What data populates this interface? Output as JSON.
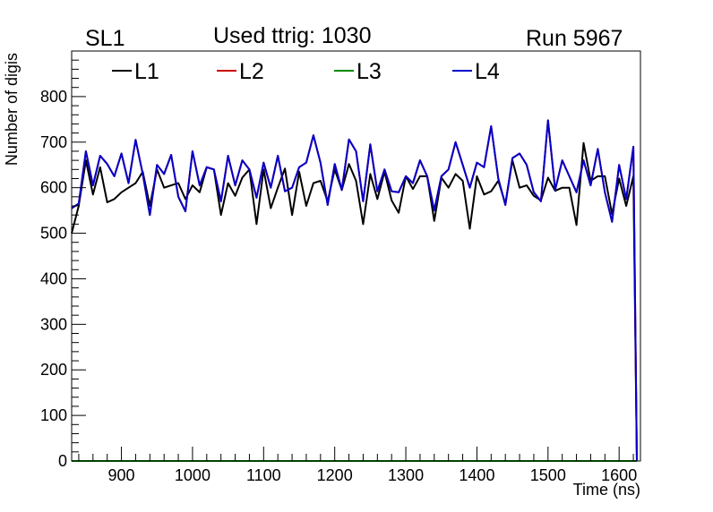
{
  "header": {
    "left": "SL1",
    "center": "Used ttrig: 1030",
    "right": "Run 5967"
  },
  "chart_data": {
    "type": "line",
    "title": "Used ttrig: 1030",
    "xlabel": "Time (ns)",
    "ylabel": "Number of digis",
    "xlim": [
      830,
      1630
    ],
    "ylim": [
      0,
      900
    ],
    "xticks": [
      900,
      1000,
      1100,
      1200,
      1300,
      1400,
      1500,
      1600
    ],
    "yticks": [
      0,
      100,
      200,
      300,
      400,
      500,
      600,
      700,
      800
    ],
    "legend_position": "top",
    "x": [
      830,
      840,
      850,
      860,
      870,
      880,
      890,
      900,
      910,
      920,
      930,
      940,
      950,
      960,
      970,
      980,
      990,
      1000,
      1010,
      1020,
      1030,
      1040,
      1050,
      1060,
      1070,
      1080,
      1090,
      1100,
      1110,
      1120,
      1130,
      1140,
      1150,
      1160,
      1170,
      1180,
      1190,
      1200,
      1210,
      1220,
      1230,
      1240,
      1250,
      1260,
      1270,
      1280,
      1290,
      1300,
      1310,
      1320,
      1330,
      1340,
      1350,
      1360,
      1370,
      1380,
      1390,
      1400,
      1410,
      1420,
      1430,
      1440,
      1450,
      1460,
      1470,
      1480,
      1490,
      1500,
      1510,
      1520,
      1530,
      1540,
      1550,
      1560,
      1570,
      1580,
      1590,
      1600,
      1610,
      1620,
      1625
    ],
    "series": [
      {
        "name": "L1",
        "color": "#000000",
        "values": [
          500,
          560,
          660,
          585,
          645,
          568,
          575,
          590,
          600,
          610,
          635,
          560,
          640,
          600,
          605,
          610,
          575,
          605,
          590,
          645,
          640,
          540,
          610,
          582,
          622,
          640,
          520,
          640,
          555,
          600,
          642,
          540,
          635,
          560,
          610,
          615,
          570,
          640,
          595,
          652,
          615,
          520,
          630,
          575,
          635,
          572,
          545,
          625,
          597,
          625,
          625,
          527,
          622,
          600,
          630,
          615,
          510,
          625,
          585,
          592,
          615,
          565,
          660,
          600,
          605,
          582,
          572,
          622,
          593,
          600,
          600,
          518,
          698,
          615,
          625,
          625,
          542,
          620,
          560,
          625,
          0
        ]
      },
      {
        "name": "L2",
        "color": "#cc0000",
        "values": [
          555,
          565,
          680,
          605,
          670,
          652,
          625,
          675,
          610,
          705,
          630,
          540,
          650,
          630,
          672,
          580,
          548,
          680,
          605,
          645,
          640,
          570,
          670,
          605,
          660,
          640,
          578,
          655,
          600,
          670,
          592,
          600,
          645,
          655,
          715,
          655,
          562,
          652,
          595,
          706,
          680,
          570,
          695,
          592,
          640,
          592,
          590,
          625,
          610,
          660,
          625,
          550,
          625,
          640,
          700,
          650,
          600,
          655,
          645,
          735,
          620,
          562,
          665,
          675,
          650,
          590,
          570,
          748,
          595,
          660,
          625,
          590,
          660,
          605,
          685,
          590,
          525,
          650,
          575,
          690,
          0
        ]
      },
      {
        "name": "L3",
        "color": "#008800",
        "values": [
          0,
          0,
          0,
          0,
          0,
          0,
          0,
          0,
          0,
          0,
          0,
          0,
          0,
          0,
          0,
          0,
          0,
          0,
          0,
          0,
          0,
          0,
          0,
          0,
          0,
          0,
          0,
          0,
          0,
          0,
          0,
          0,
          0,
          0,
          0,
          0,
          0,
          0,
          0,
          0,
          0,
          0,
          0,
          0,
          0,
          0,
          0,
          0,
          0,
          0,
          0,
          0,
          0,
          0,
          0,
          0,
          0,
          0,
          0,
          0,
          0,
          0,
          0,
          0,
          0,
          0,
          0,
          0,
          0,
          0,
          0,
          0,
          0,
          0,
          0,
          0,
          0,
          0,
          0,
          0,
          0
        ]
      },
      {
        "name": "L4",
        "color": "#0000cc",
        "values": [
          555,
          565,
          680,
          605,
          670,
          652,
          625,
          675,
          610,
          705,
          630,
          540,
          650,
          630,
          672,
          580,
          548,
          680,
          605,
          645,
          640,
          570,
          670,
          605,
          660,
          640,
          578,
          655,
          600,
          670,
          592,
          600,
          645,
          655,
          715,
          655,
          562,
          652,
          595,
          706,
          680,
          570,
          695,
          592,
          640,
          592,
          590,
          625,
          610,
          660,
          625,
          550,
          625,
          640,
          700,
          650,
          600,
          655,
          645,
          735,
          620,
          562,
          665,
          675,
          650,
          590,
          570,
          748,
          595,
          660,
          625,
          590,
          660,
          605,
          685,
          590,
          525,
          650,
          575,
          690,
          0
        ]
      }
    ]
  }
}
